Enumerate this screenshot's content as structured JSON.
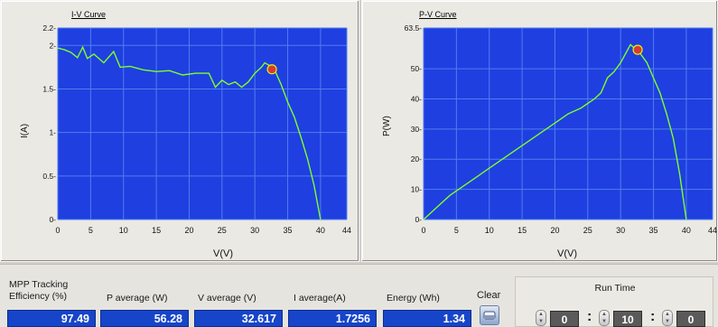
{
  "iv_chart": {
    "title": "I-V Curve",
    "xlabel": "V(V)",
    "ylabel": "I(A)",
    "x_ticks": [
      "0",
      "5",
      "10",
      "15",
      "20",
      "25",
      "30",
      "35",
      "40",
      "44"
    ],
    "y_ticks": [
      "0-",
      "0.5-",
      "1-",
      "1.5-",
      "2-",
      "2.2-"
    ]
  },
  "pv_chart": {
    "title": "P-V Curve",
    "xlabel": "V(V)",
    "ylabel": "P(W)",
    "x_ticks": [
      "0",
      "5",
      "10",
      "15",
      "20",
      "25",
      "30",
      "35",
      "40",
      "44"
    ],
    "y_ticks": [
      "0-",
      "10-",
      "20-",
      "30-",
      "40-",
      "50-",
      "63.5-"
    ]
  },
  "chart_data": [
    {
      "type": "line",
      "title": "I-V Curve",
      "xlabel": "V(V)",
      "ylabel": "I(A)",
      "xlim": [
        0,
        44
      ],
      "ylim": [
        0,
        2.2
      ],
      "series": [
        {
          "x": [
            0,
            1,
            2,
            3,
            3.8,
            4.5,
            5.5,
            7,
            8.5,
            9.5,
            11,
            13,
            15,
            17,
            19,
            21,
            23,
            24,
            25,
            26,
            27,
            28,
            29,
            30,
            31,
            31.5,
            32.2,
            33,
            34,
            35,
            36,
            37,
            38,
            39,
            40
          ],
          "y": [
            1.97,
            1.95,
            1.92,
            1.86,
            1.98,
            1.85,
            1.9,
            1.8,
            1.93,
            1.75,
            1.76,
            1.72,
            1.7,
            1.71,
            1.66,
            1.68,
            1.68,
            1.52,
            1.6,
            1.55,
            1.58,
            1.52,
            1.58,
            1.68,
            1.75,
            1.8,
            1.77,
            1.72,
            1.55,
            1.35,
            1.18,
            0.95,
            0.7,
            0.4,
            0.0
          ]
        }
      ],
      "mpp_marker": {
        "x": 32.6,
        "y": 1.7256
      }
    },
    {
      "type": "line",
      "title": "P-V Curve",
      "xlabel": "V(V)",
      "ylabel": "P(W)",
      "xlim": [
        0,
        44
      ],
      "ylim": [
        0,
        63.5
      ],
      "series": [
        {
          "x": [
            0,
            2,
            4,
            6,
            8,
            10,
            12,
            14,
            16,
            18,
            20,
            22,
            24,
            26,
            27,
            28,
            29,
            30,
            31,
            31.5,
            32,
            32.6,
            33,
            34,
            35,
            36,
            37,
            38,
            39,
            40
          ],
          "y": [
            0,
            4,
            8,
            11,
            14,
            17,
            20,
            23,
            26,
            29,
            32,
            35,
            37,
            40,
            42,
            47,
            49,
            52,
            56,
            58,
            57,
            56.28,
            55,
            52,
            47,
            42,
            35,
            27,
            15,
            0
          ]
        }
      ],
      "mpp_marker": {
        "x": 32.6,
        "y": 56.28
      }
    }
  ],
  "stats": {
    "mpp_label_line1": "MPP Tracking",
    "mpp_label_line2": "Efficiency (%)",
    "mpp_value": "97.49",
    "p_avg_label": "P average  (W)",
    "p_avg_value": "56.28",
    "v_avg_label": "V average (V)",
    "v_avg_value": "32.617",
    "i_avg_label": "I average(A)",
    "i_avg_value": "1.7256",
    "energy_label": "Energy  (Wh)",
    "energy_value": "1.34"
  },
  "clear": {
    "label": "Clear"
  },
  "run_time": {
    "label": "Run Time",
    "hours": "0",
    "minutes": "10",
    "seconds": "0"
  },
  "colors": {
    "plot_bg": "#1f3fe0",
    "grid": "#4f7ef0",
    "trace": "#7dff2a",
    "marker": "#d43b3b",
    "value_box": "#1745c9"
  }
}
